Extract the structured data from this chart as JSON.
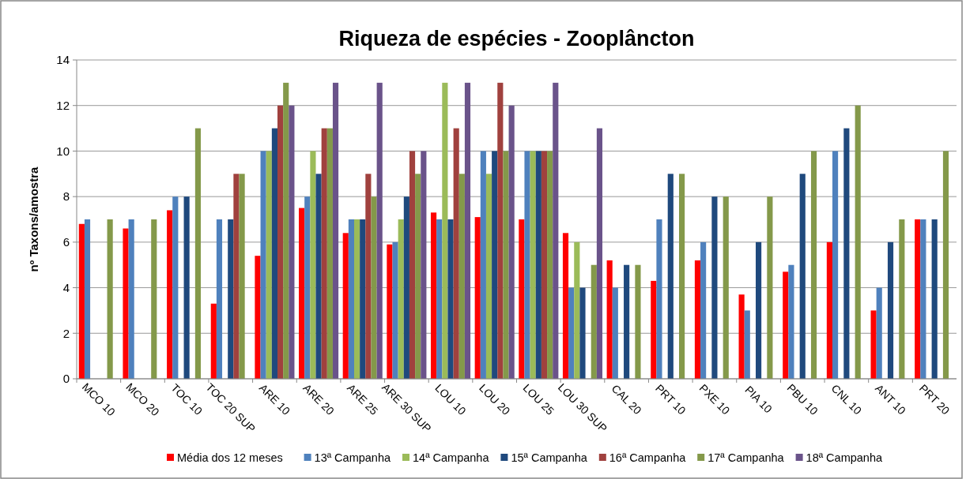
{
  "chart_data": {
    "type": "bar",
    "title": "Riqueza de espécies - Zooplâncton",
    "ylabel": "nº Taxons/amostra",
    "categories": [
      "MCO 10",
      "MCO 20",
      "TOC 10",
      "TOC 20 SUP",
      "ARE 10",
      "ARE 20",
      "ARE 25",
      "ARE 30 SUP",
      "LOU 10",
      "LOU 20",
      "LOU 25",
      "LOU 30 SUP",
      "CAL 20",
      "PRT 10",
      "PXE 10",
      "PIA 10",
      "PBU 10",
      "CNL 10",
      "ANT 10",
      "PRT 20"
    ],
    "series": [
      {
        "name": "Média dos 12 meses",
        "color": "#ff0000",
        "values": [
          6.8,
          6.6,
          7.4,
          3.3,
          5.4,
          7.5,
          6.4,
          5.9,
          7.3,
          7.1,
          7,
          6.4,
          5.2,
          4.3,
          5.2,
          3.7,
          4.7,
          6,
          3,
          7
        ]
      },
      {
        "name": "13ª Campanha",
        "color": "#4f81bd",
        "values": [
          7,
          7,
          8,
          7,
          10,
          8,
          7,
          6,
          7,
          10,
          10,
          4,
          4,
          7,
          6,
          3,
          5,
          10,
          4,
          7
        ]
      },
      {
        "name": "14ª Campanha",
        "color": "#9bbb59",
        "values": [
          null,
          null,
          null,
          null,
          10,
          10,
          7,
          7,
          13,
          9,
          10,
          6,
          null,
          null,
          null,
          null,
          null,
          null,
          null,
          null
        ]
      },
      {
        "name": "15ª Campanha",
        "color": "#1f497d",
        "values": [
          null,
          null,
          8,
          7,
          11,
          9,
          7,
          8,
          7,
          10,
          10,
          4,
          5,
          9,
          8,
          6,
          9,
          11,
          6,
          7
        ]
      },
      {
        "name": "16ª Campanha",
        "color": "#a0413e",
        "values": [
          null,
          null,
          null,
          9,
          12,
          11,
          9,
          10,
          11,
          13,
          10,
          null,
          null,
          null,
          null,
          null,
          null,
          null,
          null,
          null
        ]
      },
      {
        "name": "17ª Campanha",
        "color": "#84994a",
        "values": [
          7,
          7,
          11,
          9,
          13,
          11,
          8,
          9,
          9,
          10,
          10,
          5,
          5,
          9,
          8,
          8,
          10,
          12,
          7,
          10
        ]
      },
      {
        "name": "18ª Campanha",
        "color": "#6a538a",
        "values": [
          null,
          null,
          null,
          null,
          12,
          13,
          13,
          10,
          13,
          12,
          13,
          11,
          null,
          null,
          null,
          null,
          null,
          null,
          null,
          null
        ]
      }
    ],
    "ylim": [
      0,
      14
    ],
    "yticks": [
      0,
      2,
      4,
      6,
      8,
      10,
      12,
      14
    ],
    "grid": "y",
    "legend": "bottom"
  }
}
